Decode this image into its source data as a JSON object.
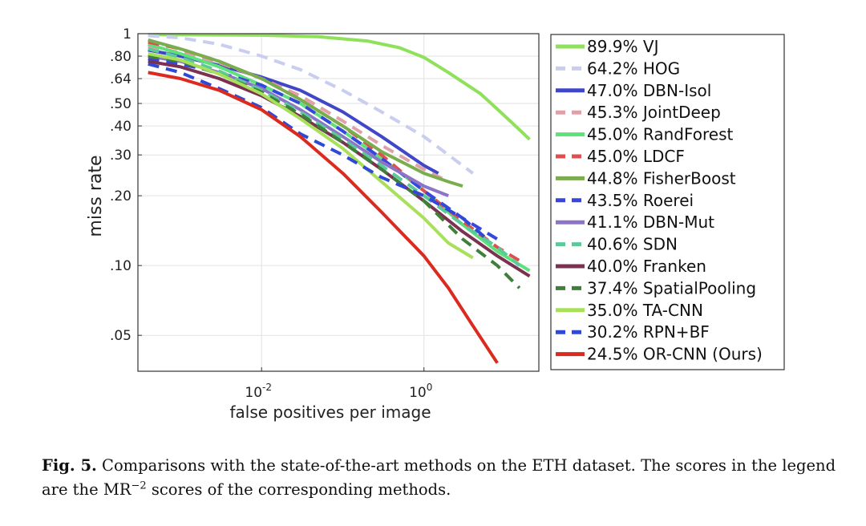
{
  "chart_data": {
    "type": "line",
    "xlabel": "false positives per image",
    "ylabel": "miss rate",
    "x_scale": "log",
    "y_scale": "log",
    "xlim": [
      0.0003,
      26
    ],
    "ylim": [
      0.035,
      1
    ],
    "x_ticks": [
      {
        "value": 0.01,
        "base": "10",
        "exp": "-2"
      },
      {
        "value": 1,
        "base": "10",
        "exp": "0"
      }
    ],
    "y_ticks": [
      {
        "value": 1,
        "label": "1"
      },
      {
        "value": 0.8,
        "label": ".80"
      },
      {
        "value": 0.64,
        "label": ".64"
      },
      {
        "value": 0.5,
        "label": ".50"
      },
      {
        "value": 0.4,
        "label": ".40"
      },
      {
        "value": 0.3,
        "label": ".30"
      },
      {
        "value": 0.2,
        "label": ".20"
      },
      {
        "value": 0.1,
        "label": ".10"
      },
      {
        "value": 0.05,
        "label": ".05"
      }
    ],
    "grid": true,
    "legend_position": "right",
    "series": [
      {
        "name": "VJ",
        "score": "89.9%",
        "label": "89.9% VJ",
        "color": "#8fe05a",
        "dash": "solid",
        "points": [
          [
            0.0004,
            0.99
          ],
          [
            0.001,
            0.99
          ],
          [
            0.01,
            0.985
          ],
          [
            0.05,
            0.97
          ],
          [
            0.2,
            0.93
          ],
          [
            0.5,
            0.87
          ],
          [
            1,
            0.79
          ],
          [
            2,
            0.68
          ],
          [
            5,
            0.55
          ],
          [
            10,
            0.44
          ],
          [
            20,
            0.35
          ]
        ]
      },
      {
        "name": "HOG",
        "score": "64.2%",
        "label": "64.2% HOG",
        "color": "#c9cdf0",
        "dash": "dashed",
        "points": [
          [
            0.0004,
            0.98
          ],
          [
            0.001,
            0.96
          ],
          [
            0.003,
            0.9
          ],
          [
            0.01,
            0.8
          ],
          [
            0.03,
            0.7
          ],
          [
            0.1,
            0.57
          ],
          [
            0.3,
            0.46
          ],
          [
            1,
            0.36
          ],
          [
            2,
            0.3
          ],
          [
            4,
            0.25
          ]
        ]
      },
      {
        "name": "DBN-Isol",
        "score": "47.0%",
        "label": "47.0% DBN-Isol",
        "color": "#4046c8",
        "dash": "solid",
        "points": [
          [
            0.0004,
            0.85
          ],
          [
            0.001,
            0.8
          ],
          [
            0.003,
            0.73
          ],
          [
            0.01,
            0.65
          ],
          [
            0.03,
            0.57
          ],
          [
            0.1,
            0.46
          ],
          [
            0.3,
            0.36
          ],
          [
            1,
            0.27
          ],
          [
            1.5,
            0.25
          ]
        ]
      },
      {
        "name": "JointDeep",
        "score": "45.3%",
        "label": "45.3% JointDeep",
        "color": "#e0a0a8",
        "dash": "dashed",
        "points": [
          [
            0.0004,
            0.88
          ],
          [
            0.001,
            0.83
          ],
          [
            0.003,
            0.75
          ],
          [
            0.01,
            0.64
          ],
          [
            0.03,
            0.54
          ],
          [
            0.1,
            0.42
          ],
          [
            0.3,
            0.33
          ],
          [
            1,
            0.26
          ],
          [
            2,
            0.23
          ]
        ]
      },
      {
        "name": "RandForest",
        "score": "45.0%",
        "label": "45.0% RandForest",
        "color": "#5ee07c",
        "dash": "solid",
        "points": [
          [
            0.0004,
            0.9
          ],
          [
            0.001,
            0.82
          ],
          [
            0.003,
            0.72
          ],
          [
            0.01,
            0.6
          ],
          [
            0.03,
            0.5
          ],
          [
            0.1,
            0.38
          ],
          [
            0.3,
            0.29
          ],
          [
            1,
            0.21
          ],
          [
            3,
            0.15
          ],
          [
            8,
            0.115
          ],
          [
            20,
            0.095
          ]
        ]
      },
      {
        "name": "LDCF",
        "score": "45.0%",
        "label": "45.0% LDCF",
        "color": "#de5050",
        "dash": "dashed",
        "points": [
          [
            0.0004,
            0.92
          ],
          [
            0.001,
            0.86
          ],
          [
            0.003,
            0.76
          ],
          [
            0.01,
            0.64
          ],
          [
            0.03,
            0.52
          ],
          [
            0.1,
            0.4
          ],
          [
            0.3,
            0.3
          ],
          [
            1,
            0.21
          ],
          [
            3,
            0.155
          ],
          [
            8,
            0.12
          ],
          [
            15,
            0.105
          ]
        ]
      },
      {
        "name": "FisherBoost",
        "score": "44.8%",
        "label": "44.8% FisherBoost",
        "color": "#79ad4e",
        "dash": "solid",
        "points": [
          [
            0.0004,
            0.94
          ],
          [
            0.001,
            0.86
          ],
          [
            0.003,
            0.76
          ],
          [
            0.01,
            0.64
          ],
          [
            0.03,
            0.52
          ],
          [
            0.1,
            0.4
          ],
          [
            0.3,
            0.31
          ],
          [
            1,
            0.25
          ],
          [
            2,
            0.23
          ],
          [
            3,
            0.22
          ]
        ]
      },
      {
        "name": "Roerei",
        "score": "43.5%",
        "label": "43.5% Roerei",
        "color": "#3747dc",
        "dash": "dashed",
        "points": [
          [
            0.0004,
            0.78
          ],
          [
            0.001,
            0.74
          ],
          [
            0.003,
            0.68
          ],
          [
            0.01,
            0.6
          ],
          [
            0.03,
            0.5
          ],
          [
            0.1,
            0.38
          ],
          [
            0.3,
            0.29
          ],
          [
            1,
            0.21
          ],
          [
            3,
            0.16
          ],
          [
            8,
            0.13
          ]
        ]
      },
      {
        "name": "DBN-Mut",
        "score": "41.1%",
        "label": "41.1% DBN-Mut",
        "color": "#8c74c8",
        "dash": "solid",
        "points": [
          [
            0.0004,
            0.8
          ],
          [
            0.001,
            0.76
          ],
          [
            0.003,
            0.68
          ],
          [
            0.01,
            0.58
          ],
          [
            0.03,
            0.47
          ],
          [
            0.1,
            0.36
          ],
          [
            0.3,
            0.28
          ],
          [
            1,
            0.22
          ],
          [
            2,
            0.2
          ]
        ]
      },
      {
        "name": "SDN",
        "score": "40.6%",
        "label": "40.6% SDN",
        "color": "#5cc99a",
        "dash": "dashed",
        "points": [
          [
            0.0004,
            0.86
          ],
          [
            0.001,
            0.79
          ],
          [
            0.003,
            0.69
          ],
          [
            0.01,
            0.57
          ],
          [
            0.03,
            0.46
          ],
          [
            0.1,
            0.35
          ],
          [
            0.3,
            0.27
          ],
          [
            1,
            0.2
          ],
          [
            3,
            0.15
          ],
          [
            8,
            0.12
          ],
          [
            15,
            0.1
          ]
        ]
      },
      {
        "name": "Franken",
        "score": "40.0%",
        "label": "40.0% Franken",
        "color": "#7a3250",
        "dash": "solid",
        "points": [
          [
            0.0004,
            0.76
          ],
          [
            0.001,
            0.72
          ],
          [
            0.003,
            0.64
          ],
          [
            0.01,
            0.54
          ],
          [
            0.03,
            0.44
          ],
          [
            0.1,
            0.34
          ],
          [
            0.3,
            0.26
          ],
          [
            1,
            0.19
          ],
          [
            3,
            0.14
          ],
          [
            8,
            0.11
          ],
          [
            20,
            0.09
          ]
        ]
      },
      {
        "name": "SpatialPooling",
        "score": "37.4%",
        "label": "37.4% SpatialPooling",
        "color": "#3f7f3a",
        "dash": "dashed",
        "points": [
          [
            0.0004,
            0.8
          ],
          [
            0.001,
            0.76
          ],
          [
            0.003,
            0.67
          ],
          [
            0.01,
            0.56
          ],
          [
            0.03,
            0.45
          ],
          [
            0.1,
            0.34
          ],
          [
            0.3,
            0.26
          ],
          [
            1,
            0.19
          ],
          [
            3,
            0.13
          ],
          [
            8,
            0.1
          ],
          [
            15,
            0.08
          ]
        ]
      },
      {
        "name": "TA-CNN",
        "score": "35.0%",
        "label": "35.0% TA-CNN",
        "color": "#a9e05a",
        "dash": "solid",
        "points": [
          [
            0.0004,
            0.82
          ],
          [
            0.001,
            0.77
          ],
          [
            0.003,
            0.67
          ],
          [
            0.01,
            0.55
          ],
          [
            0.03,
            0.43
          ],
          [
            0.1,
            0.32
          ],
          [
            0.3,
            0.23
          ],
          [
            1,
            0.16
          ],
          [
            2,
            0.125
          ],
          [
            4,
            0.108
          ]
        ]
      },
      {
        "name": "RPN+BF",
        "score": "30.2%",
        "label": "30.2% RPN+BF",
        "color": "#2f48d6",
        "dash": "dashed",
        "points": [
          [
            0.0004,
            0.74
          ],
          [
            0.001,
            0.68
          ],
          [
            0.003,
            0.58
          ],
          [
            0.01,
            0.48
          ],
          [
            0.03,
            0.37
          ],
          [
            0.1,
            0.3
          ],
          [
            0.3,
            0.24
          ],
          [
            1,
            0.2
          ],
          [
            3,
            0.16
          ],
          [
            6,
            0.13
          ]
        ]
      },
      {
        "name": "OR-CNN (Ours)",
        "score": "24.5%",
        "label": "24.5% OR-CNN (Ours)",
        "color": "#dd2a1f",
        "dash": "solid",
        "points": [
          [
            0.0004,
            0.68
          ],
          [
            0.001,
            0.64
          ],
          [
            0.003,
            0.57
          ],
          [
            0.01,
            0.47
          ],
          [
            0.03,
            0.36
          ],
          [
            0.1,
            0.25
          ],
          [
            0.3,
            0.17
          ],
          [
            1,
            0.11
          ],
          [
            2,
            0.08
          ],
          [
            4,
            0.055
          ],
          [
            8,
            0.038
          ]
        ]
      }
    ]
  },
  "caption": {
    "label": "Fig. 5.",
    "text_before": " Comparisons with the state-of-the-art methods on the ETH dataset. The scores in the legend are the MR",
    "superscript": "−2",
    "text_after": " scores of the corresponding methods."
  }
}
